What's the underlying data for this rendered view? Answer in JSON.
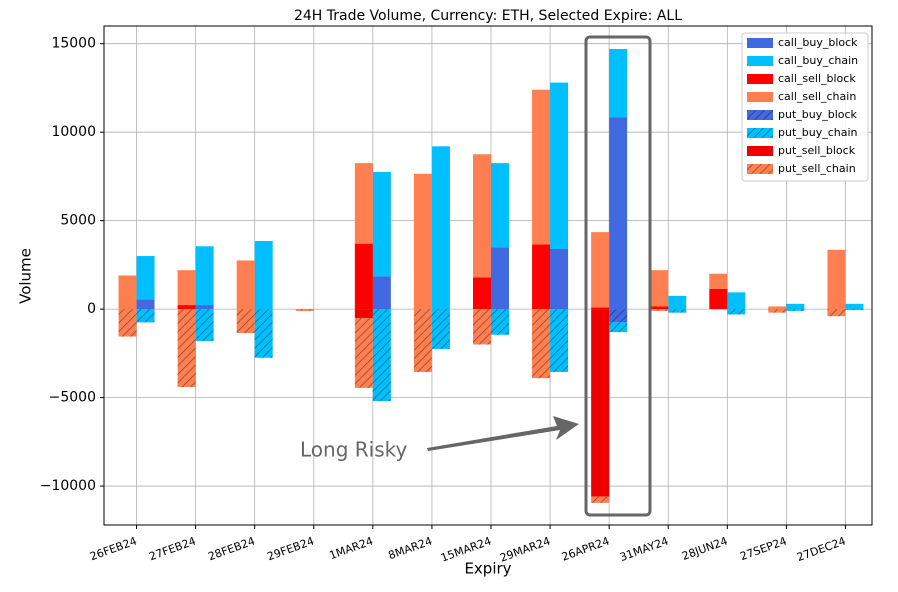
{
  "chart_data": {
    "type": "bar",
    "title": "24H Trade Volume, Currency: ETH, Selected Expire: ALL",
    "x_label": "Expiry",
    "y_label": "Volume",
    "categories": [
      "26FEB24",
      "27FEB24",
      "28FEB24",
      "29FEB24",
      "1MAR24",
      "8MAR24",
      "15MAR24",
      "29MAR24",
      "26APR24",
      "31MAY24",
      "28JUN24",
      "27SEP24",
      "27DEC24"
    ],
    "series": [
      {
        "name": "call_buy_block",
        "color": "#4169e1",
        "hatch": false,
        "values": [
          550,
          230,
          0,
          0,
          1850,
          0,
          3500,
          3400,
          10850,
          0,
          0,
          0,
          0
        ]
      },
      {
        "name": "call_buy_chain",
        "color": "#00bfff",
        "hatch": false,
        "values": [
          2450,
          3320,
          3850,
          0,
          5900,
          9200,
          4750,
          9400,
          3850,
          750,
          950,
          300,
          300
        ]
      },
      {
        "name": "call_sell_block",
        "color": "#ff0000",
        "hatch": false,
        "values": [
          0,
          230,
          0,
          0,
          3700,
          0,
          1800,
          3650,
          100,
          150,
          1150,
          0,
          0
        ]
      },
      {
        "name": "call_sell_chain",
        "color": "#ff7f50",
        "hatch": false,
        "values": [
          1900,
          1970,
          2750,
          0,
          4550,
          7650,
          6950,
          8750,
          4250,
          2050,
          850,
          150,
          3350
        ]
      },
      {
        "name": "put_buy_block",
        "color": "#4169e1",
        "hatch": true,
        "values": [
          0,
          0,
          0,
          0,
          0,
          0,
          0,
          0,
          -750,
          0,
          0,
          0,
          0
        ]
      },
      {
        "name": "put_buy_chain",
        "color": "#00bfff",
        "hatch": true,
        "values": [
          -750,
          -1800,
          -2750,
          0,
          -5200,
          -2250,
          -1450,
          -3550,
          -550,
          -200,
          -300,
          -100,
          -50
        ]
      },
      {
        "name": "put_sell_block",
        "color": "#ee0000",
        "hatch": false,
        "values": [
          0,
          0,
          0,
          0,
          -500,
          0,
          0,
          0,
          -10600,
          0,
          0,
          0,
          0
        ]
      },
      {
        "name": "put_sell_chain",
        "color": "#ff7f50",
        "hatch": true,
        "values": [
          -1550,
          -4400,
          -1350,
          -100,
          -3950,
          -3550,
          -2000,
          -3900,
          -350,
          -100,
          0,
          -200,
          -400
        ]
      }
    ],
    "ylim": [
      -12200,
      16000
    ],
    "yticks": [
      {
        "value": -10000,
        "label": "−10000"
      },
      {
        "value": -5000,
        "label": "−5000"
      },
      0,
      5000,
      10000,
      15000
    ],
    "grid": true,
    "legend": "upper right",
    "annotation": "Long Risky"
  }
}
